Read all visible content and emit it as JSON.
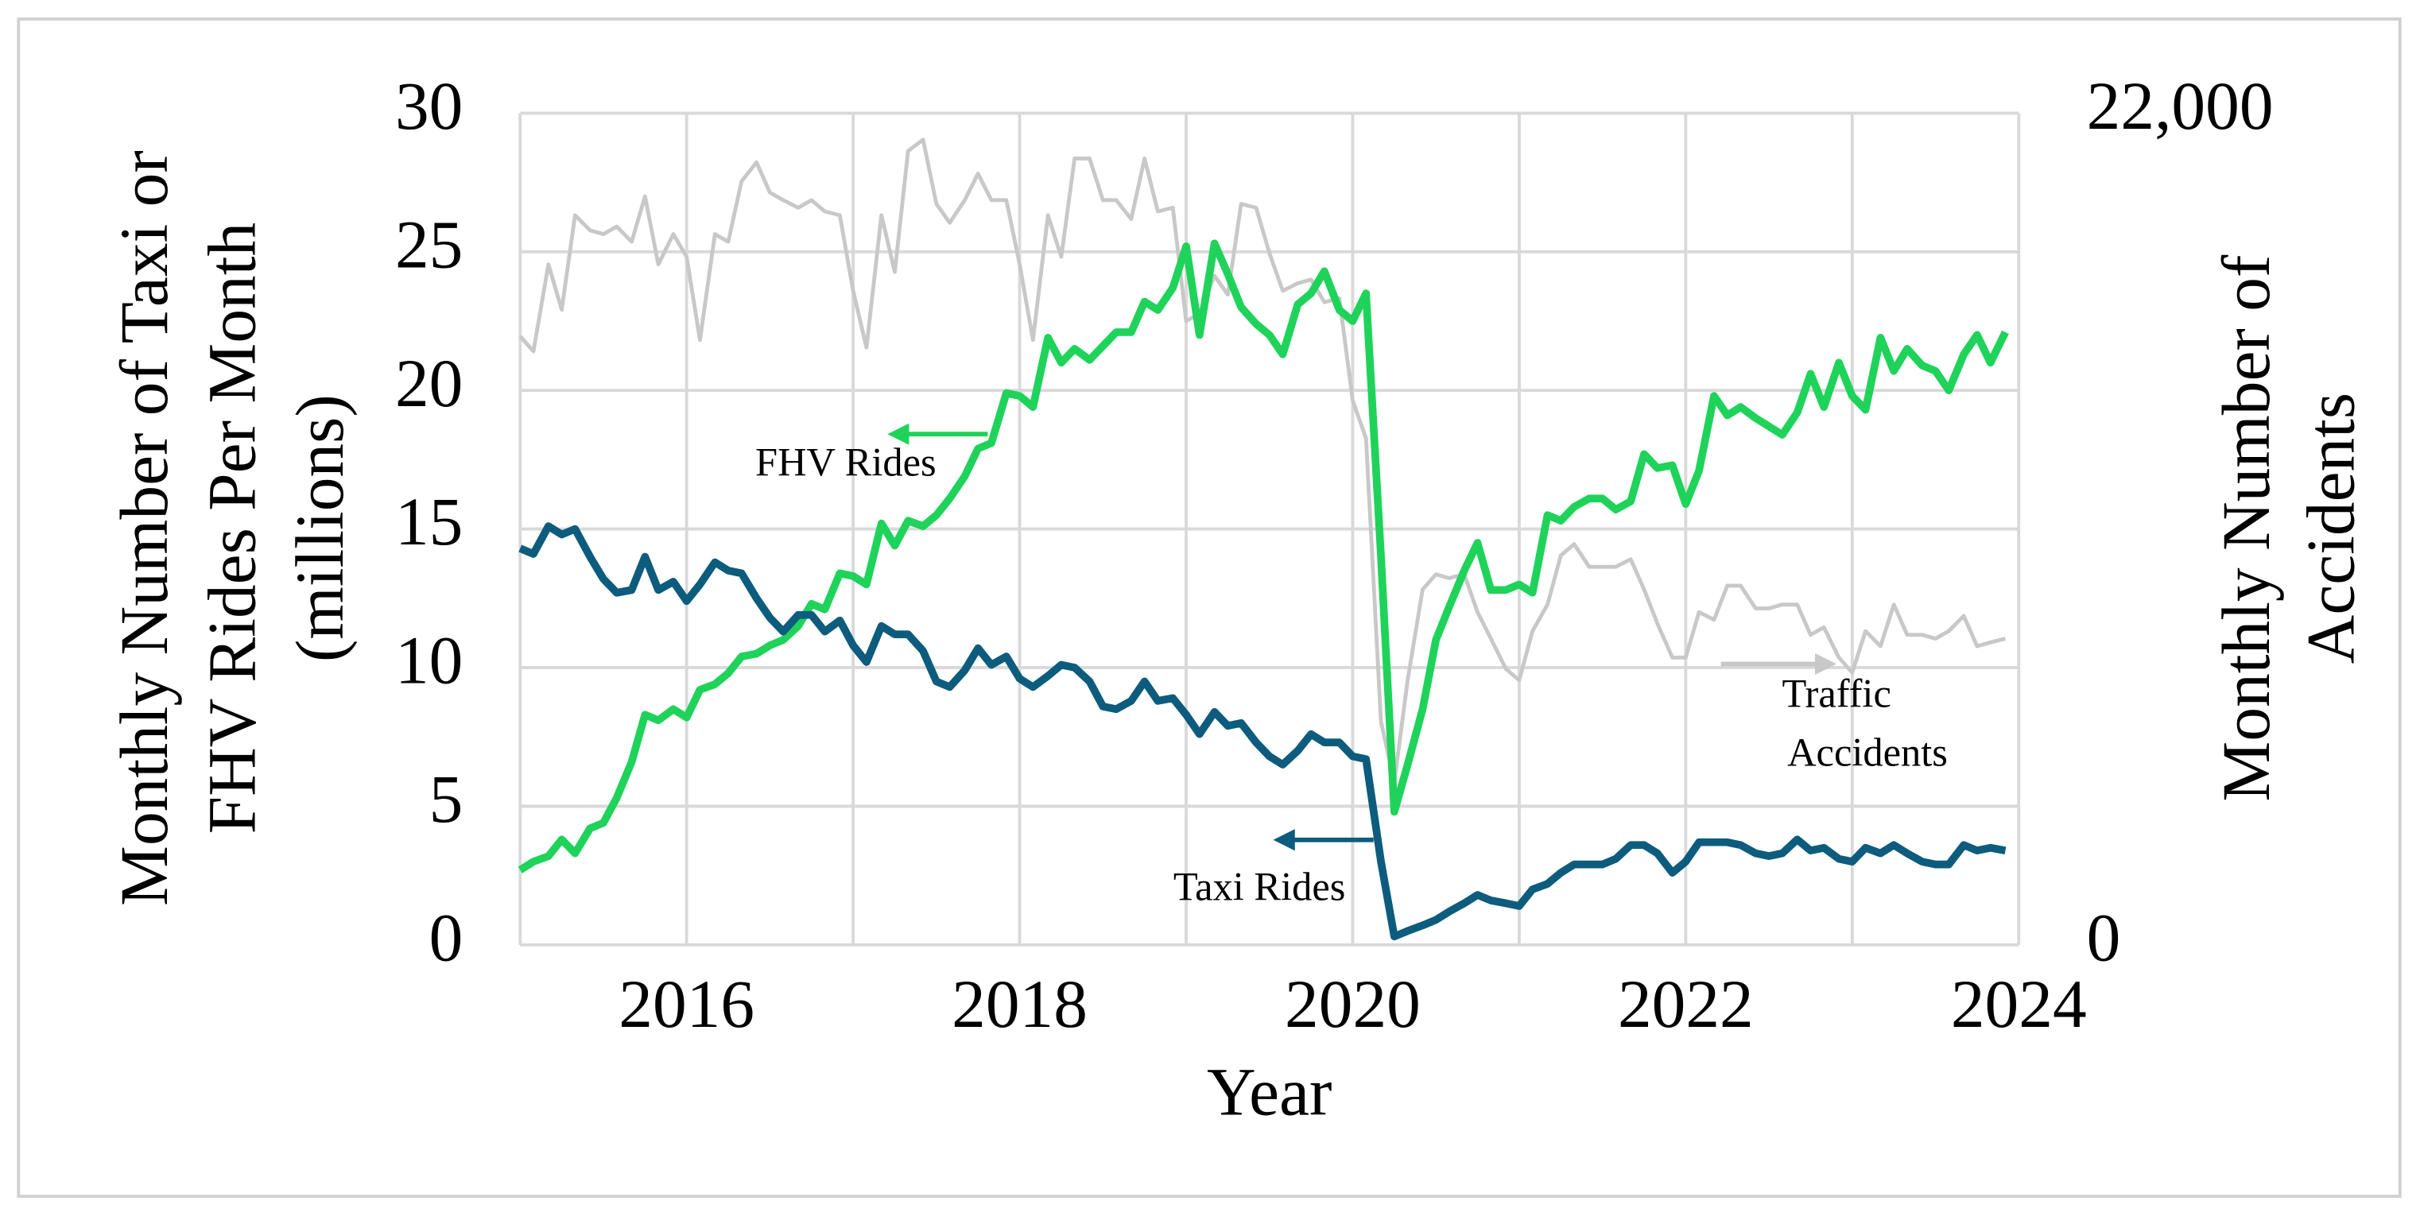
{
  "chart_data": {
    "type": "line",
    "xlabel": "Year",
    "ylabel": [
      "Monthly Number of Taxi or",
      "FHV Rides Per Month",
      "(millions)"
    ],
    "y2label": [
      "Monthly Number of",
      "Accidents"
    ],
    "xlim": [
      2015,
      2024
    ],
    "xticks": [
      2016,
      2018,
      2020,
      2022,
      2024
    ],
    "x_gridlines": [
      2015,
      2016,
      2017,
      2018,
      2019,
      2020,
      2021,
      2022,
      2023,
      2024
    ],
    "ylim": [
      0,
      30
    ],
    "yticks": [
      0,
      5,
      10,
      15,
      20,
      25,
      30
    ],
    "y2lim": [
      0,
      22000
    ],
    "y2ticks": [
      0,
      {
        "value": 22000,
        "label": "22,000"
      }
    ],
    "grid": true,
    "x": [
      2015,
      2015.08,
      2015.17,
      2015.25,
      2015.33,
      2015.42,
      2015.5,
      2015.58,
      2015.67,
      2015.75,
      2015.83,
      2015.92,
      2016,
      2016.08,
      2016.17,
      2016.25,
      2016.33,
      2016.42,
      2016.5,
      2016.58,
      2016.67,
      2016.75,
      2016.83,
      2016.92,
      2017,
      2017.08,
      2017.17,
      2017.25,
      2017.33,
      2017.42,
      2017.5,
      2017.58,
      2017.67,
      2017.75,
      2017.83,
      2017.92,
      2018,
      2018.08,
      2018.17,
      2018.25,
      2018.33,
      2018.42,
      2018.5,
      2018.58,
      2018.67,
      2018.75,
      2018.83,
      2018.92,
      2019,
      2019.08,
      2019.17,
      2019.25,
      2019.33,
      2019.42,
      2019.5,
      2019.58,
      2019.67,
      2019.75,
      2019.83,
      2019.92,
      2020,
      2020.08,
      2020.17,
      2020.25,
      2020.33,
      2020.42,
      2020.5,
      2020.58,
      2020.67,
      2020.75,
      2020.83,
      2020.92,
      2021,
      2021.08,
      2021.17,
      2021.25,
      2021.33,
      2021.42,
      2021.5,
      2021.58,
      2021.67,
      2021.75,
      2021.83,
      2021.92,
      2022,
      2022.08,
      2022.17,
      2022.25,
      2022.33,
      2022.42,
      2022.5,
      2022.58,
      2022.67,
      2022.75,
      2022.83,
      2022.92,
      2023,
      2023.08,
      2023.17,
      2023.25,
      2023.33,
      2023.42,
      2023.5,
      2023.58,
      2023.67,
      2023.75,
      2023.83,
      2023.92
    ],
    "series": [
      {
        "name": "Traffic Accidents",
        "color": "#c8c8c8",
        "axis": "y2",
        "values": [
          16100,
          15700,
          18000,
          16800,
          19300,
          18900,
          18800,
          19000,
          18600,
          19800,
          18000,
          18800,
          18200,
          16000,
          18800,
          18600,
          20200,
          20700,
          19900,
          19700,
          19500,
          19700,
          19400,
          19300,
          17300,
          15800,
          19300,
          17800,
          21000,
          21300,
          19600,
          19100,
          19700,
          20400,
          19700,
          19700,
          18000,
          16000,
          19300,
          18200,
          20800,
          20800,
          19700,
          19700,
          19200,
          20800,
          19400,
          19500,
          16500,
          16700,
          17700,
          17200,
          19600,
          19500,
          18300,
          17300,
          17500,
          17600,
          17000,
          17100,
          14400,
          13400,
          5900,
          4300,
          7000,
          9400,
          9800,
          9700,
          9800,
          8800,
          8100,
          7300,
          7000,
          8300,
          9000,
          10300,
          10600,
          10000,
          10000,
          10000,
          10200,
          9400,
          8500,
          7600,
          7600,
          8800,
          8600,
          9500,
          9500,
          8900,
          8900,
          9000,
          9000,
          8200,
          8400,
          7600,
          7200,
          8300,
          7900,
          9000,
          8200,
          8200,
          8100,
          8300,
          8700,
          7900,
          8000,
          8100
        ]
      },
      {
        "name": "FHV Rides",
        "color": "#1fd35a",
        "values": [
          2.7,
          3.0,
          3.2,
          3.8,
          3.3,
          4.2,
          4.4,
          5.3,
          6.6,
          8.3,
          8.1,
          8.5,
          8.2,
          9.2,
          9.4,
          9.8,
          10.4,
          10.5,
          10.8,
          11.0,
          11.5,
          12.3,
          12.1,
          13.4,
          13.3,
          13.0,
          15.2,
          14.4,
          15.3,
          15.1,
          15.5,
          16.1,
          16.9,
          17.9,
          18.1,
          19.9,
          19.8,
          19.4,
          21.9,
          21.0,
          21.5,
          21.1,
          21.6,
          22.1,
          22.1,
          23.2,
          22.9,
          23.7,
          25.2,
          22.0,
          25.3,
          24.2,
          23.0,
          22.4,
          22.0,
          21.3,
          23.1,
          23.5,
          24.3,
          22.9,
          22.5,
          23.5,
          14.0,
          4.8,
          6.5,
          8.5,
          11.0,
          12.2,
          13.5,
          14.5,
          12.8,
          12.8,
          13.0,
          12.7,
          15.5,
          15.3,
          15.8,
          16.1,
          16.1,
          15.7,
          16.0,
          17.7,
          17.2,
          17.3,
          15.9,
          17.1,
          19.8,
          19.1,
          19.4,
          19.0,
          18.7,
          18.4,
          19.2,
          20.6,
          19.4,
          21.0,
          19.8,
          19.3,
          21.9,
          20.7,
          21.5,
          20.9,
          20.7,
          20.0,
          21.3,
          22.0,
          21.0,
          22.1
        ]
      },
      {
        "name": "Taxi Rides",
        "color": "#0d5c7d",
        "values": [
          14.3,
          14.1,
          15.1,
          14.8,
          15.0,
          14.0,
          13.2,
          12.7,
          12.8,
          14.0,
          12.8,
          13.1,
          12.4,
          13.0,
          13.8,
          13.5,
          13.4,
          12.5,
          11.8,
          11.3,
          11.9,
          11.9,
          11.3,
          11.7,
          10.8,
          10.2,
          11.5,
          11.2,
          11.2,
          10.6,
          9.5,
          9.3,
          9.9,
          10.7,
          10.1,
          10.4,
          9.6,
          9.3,
          9.7,
          10.1,
          10.0,
          9.5,
          8.6,
          8.5,
          8.8,
          9.5,
          8.8,
          8.9,
          8.3,
          7.6,
          8.4,
          7.9,
          8.0,
          7.3,
          6.8,
          6.5,
          7.0,
          7.6,
          7.3,
          7.3,
          6.8,
          6.7,
          3.0,
          0.3,
          0.5,
          0.7,
          0.9,
          1.2,
          1.5,
          1.8,
          1.6,
          1.5,
          1.4,
          2.0,
          2.2,
          2.6,
          2.9,
          2.9,
          2.9,
          3.1,
          3.6,
          3.6,
          3.3,
          2.6,
          3.0,
          3.7,
          3.7,
          3.7,
          3.6,
          3.3,
          3.2,
          3.3,
          3.8,
          3.4,
          3.5,
          3.1,
          3.0,
          3.5,
          3.3,
          3.6,
          3.3,
          3.0,
          2.9,
          2.9,
          3.6,
          3.4,
          3.5,
          3.4
        ]
      }
    ],
    "annotations": [
      {
        "lines": [
          "FHV Rides"
        ],
        "color": "#1fd35a"
      },
      {
        "lines": [
          "Taxi Rides"
        ],
        "color": "#0d5c7d"
      },
      {
        "lines": [
          "Traffic",
          "Accidents"
        ],
        "color": "#c8c8c8"
      }
    ]
  }
}
